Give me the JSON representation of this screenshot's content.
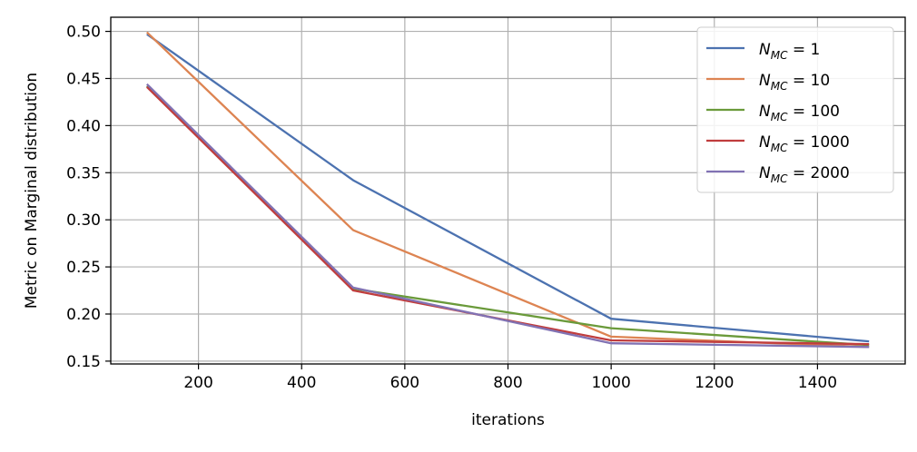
{
  "chart_data": {
    "type": "line",
    "xlabel": "iterations",
    "ylabel": "Metric on Marginal distribution",
    "x": [
      100,
      500,
      1000,
      1500
    ],
    "xlim": [
      30,
      1570
    ],
    "ylim": [
      0.147,
      0.515
    ],
    "xticks": [
      200,
      400,
      600,
      800,
      1000,
      1200,
      1400
    ],
    "xtick_labels": [
      "200",
      "400",
      "600",
      "800",
      "1000",
      "1200",
      "1400"
    ],
    "yticks": [
      0.15,
      0.2,
      0.25,
      0.3,
      0.35,
      0.4,
      0.45,
      0.5
    ],
    "ytick_labels": [
      "0.15",
      "0.20",
      "0.25",
      "0.30",
      "0.35",
      "0.40",
      "0.45",
      "0.50"
    ],
    "grid": true,
    "legend_position": "top-right",
    "series": [
      {
        "name": "N_MC = 1",
        "legend_main": "N",
        "legend_sub": "MC",
        "legend_value": " = 1",
        "color": "#4c72b0",
        "values": [
          0.497,
          0.342,
          0.195,
          0.171
        ]
      },
      {
        "name": "N_MC = 10",
        "legend_main": "N",
        "legend_sub": "MC",
        "legend_value": " = 10",
        "color": "#dd8452",
        "values": [
          0.499,
          0.289,
          0.176,
          0.165
        ]
      },
      {
        "name": "N_MC = 100",
        "legend_main": "N",
        "legend_sub": "MC",
        "legend_value": " = 100",
        "color": "#6a9a3a",
        "values": [
          0.442,
          0.227,
          0.185,
          0.167
        ]
      },
      {
        "name": "N_MC = 1000",
        "legend_main": "N",
        "legend_sub": "MC",
        "legend_value": " = 1000",
        "color": "#c03d3e",
        "values": [
          0.441,
          0.225,
          0.172,
          0.168
        ]
      },
      {
        "name": "N_MC = 2000",
        "legend_main": "N",
        "legend_sub": "MC",
        "legend_value": " = 2000",
        "color": "#8172b3",
        "values": [
          0.444,
          0.228,
          0.169,
          0.165
        ]
      }
    ]
  }
}
